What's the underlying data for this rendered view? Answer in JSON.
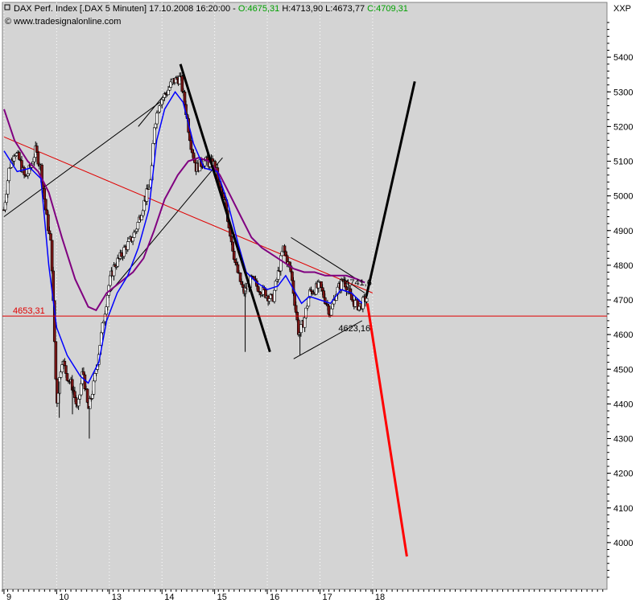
{
  "header": {
    "title": "DAX Perf. Index [.DAX  5 Minuten]",
    "datetime": "17.10.2008 16:20:00",
    "open": "O:4675,31",
    "high": "H:4713,90",
    "low": "L:4673,77",
    "close": "C:4709,31",
    "source": "© www.tradesignalonline.com",
    "symbol": "XXP"
  },
  "colors": {
    "plot_bg": "#d4d4d4",
    "candle_up": "#ffffff",
    "candle_down": "#7a1515",
    "ma_fast": "#0000ff",
    "ma_slow": "#800080",
    "support_line": "#e00000",
    "trend_thin": "#000000",
    "projection_up": "#000000",
    "projection_down": "#ff0000",
    "open_value": "#00a000",
    "close_value": "#00a000"
  },
  "chart_data": {
    "type": "candlestick",
    "y_range": [
      3900,
      5500
    ],
    "y_ticks": [
      4000,
      4100,
      4200,
      4300,
      4400,
      4500,
      4600,
      4700,
      4800,
      4900,
      5000,
      5100,
      5200,
      5300,
      5400
    ],
    "x_range": [
      8.97,
      20.45
    ],
    "x_ticks": [
      {
        "label": "9",
        "x": 9.0
      },
      {
        "label": "10",
        "x": 10.0
      },
      {
        "label": "13",
        "x": 11.0
      },
      {
        "label": "14",
        "x": 12.0
      },
      {
        "label": "15",
        "x": 13.0
      },
      {
        "label": "16",
        "x": 14.0
      },
      {
        "label": "17",
        "x": 15.0
      },
      {
        "label": "18",
        "x": 16.0
      }
    ],
    "price_path": [
      [
        9.0,
        4960
      ],
      [
        9.1,
        5080
      ],
      [
        9.2,
        5130
      ],
      [
        9.3,
        5100
      ],
      [
        9.4,
        5050
      ],
      [
        9.5,
        5080
      ],
      [
        9.6,
        5130
      ],
      [
        9.7,
        5080
      ],
      [
        9.8,
        4950
      ],
      [
        9.9,
        4850
      ],
      [
        10.0,
        4400
      ],
      [
        10.1,
        4530
      ],
      [
        10.2,
        4480
      ],
      [
        10.3,
        4450
      ],
      [
        10.4,
        4380
      ],
      [
        10.5,
        4500
      ],
      [
        10.6,
        4380
      ],
      [
        10.7,
        4450
      ],
      [
        10.85,
        4600
      ],
      [
        11.0,
        4750
      ],
      [
        11.1,
        4800
      ],
      [
        11.2,
        4820
      ],
      [
        11.3,
        4850
      ],
      [
        11.4,
        4870
      ],
      [
        11.5,
        4900
      ],
      [
        11.6,
        4950
      ],
      [
        11.7,
        5000
      ],
      [
        11.8,
        5050
      ],
      [
        11.85,
        5200
      ],
      [
        11.95,
        5270
      ],
      [
        12.1,
        5300
      ],
      [
        12.2,
        5330
      ],
      [
        12.35,
        5340
      ],
      [
        12.45,
        5250
      ],
      [
        12.55,
        5150
      ],
      [
        12.65,
        5080
      ],
      [
        12.8,
        5100
      ],
      [
        13.0,
        5090
      ],
      [
        13.1,
        5020
      ],
      [
        13.2,
        4980
      ],
      [
        13.3,
        4890
      ],
      [
        13.4,
        4800
      ],
      [
        13.55,
        4720
      ],
      [
        13.7,
        4760
      ],
      [
        13.8,
        4740
      ],
      [
        13.95,
        4720
      ],
      [
        14.1,
        4700
      ],
      [
        14.2,
        4770
      ],
      [
        14.3,
        4850
      ],
      [
        14.45,
        4780
      ],
      [
        14.6,
        4600
      ],
      [
        14.7,
        4640
      ],
      [
        14.8,
        4720
      ],
      [
        15.0,
        4740
      ],
      [
        15.1,
        4700
      ],
      [
        15.2,
        4660
      ],
      [
        15.3,
        4720
      ],
      [
        15.45,
        4760
      ],
      [
        15.6,
        4700
      ],
      [
        15.75,
        4680
      ],
      [
        15.9,
        4709
      ]
    ],
    "spikes": [
      {
        "x": 10.05,
        "low": 4360
      },
      {
        "x": 10.3,
        "low": 4370
      },
      {
        "x": 10.62,
        "low": 4300
      },
      {
        "x": 13.58,
        "low": 4550
      },
      {
        "x": 14.62,
        "low": 4540
      }
    ],
    "ma_fast": [
      [
        9.0,
        5130
      ],
      [
        9.25,
        5070
      ],
      [
        9.5,
        5080
      ],
      [
        9.7,
        5050
      ],
      [
        9.85,
        4800
      ],
      [
        10.0,
        4620
      ],
      [
        10.2,
        4540
      ],
      [
        10.45,
        4480
      ],
      [
        10.6,
        4460
      ],
      [
        10.8,
        4520
      ],
      [
        10.95,
        4640
      ],
      [
        11.15,
        4720
      ],
      [
        11.35,
        4770
      ],
      [
        11.55,
        4850
      ],
      [
        11.75,
        4960
      ],
      [
        11.9,
        5160
      ],
      [
        12.05,
        5250
      ],
      [
        12.25,
        5300
      ],
      [
        12.4,
        5270
      ],
      [
        12.6,
        5150
      ],
      [
        12.8,
        5080
      ],
      [
        13.05,
        5070
      ],
      [
        13.25,
        4980
      ],
      [
        13.45,
        4860
      ],
      [
        13.6,
        4780
      ],
      [
        13.8,
        4750
      ],
      [
        14.0,
        4730
      ],
      [
        14.2,
        4740
      ],
      [
        14.35,
        4770
      ],
      [
        14.5,
        4730
      ],
      [
        14.65,
        4690
      ],
      [
        14.8,
        4710
      ],
      [
        15.0,
        4700
      ],
      [
        15.2,
        4690
      ],
      [
        15.4,
        4730
      ],
      [
        15.6,
        4720
      ],
      [
        15.8,
        4690
      ]
    ],
    "ma_slow": [
      [
        9.0,
        5250
      ],
      [
        9.2,
        5160
      ],
      [
        9.45,
        5100
      ],
      [
        9.65,
        5070
      ],
      [
        9.85,
        5010
      ],
      [
        10.1,
        4880
      ],
      [
        10.35,
        4760
      ],
      [
        10.6,
        4680
      ],
      [
        10.75,
        4670
      ],
      [
        10.95,
        4720
      ],
      [
        11.2,
        4750
      ],
      [
        11.45,
        4780
      ],
      [
        11.65,
        4820
      ],
      [
        11.85,
        4900
      ],
      [
        12.05,
        4990
      ],
      [
        12.3,
        5060
      ],
      [
        12.5,
        5100
      ],
      [
        12.7,
        5110
      ],
      [
        12.9,
        5100
      ],
      [
        13.1,
        5060
      ],
      [
        13.3,
        5000
      ],
      [
        13.5,
        4940
      ],
      [
        13.7,
        4880
      ],
      [
        13.9,
        4850
      ],
      [
        14.1,
        4830
      ],
      [
        14.3,
        4810
      ],
      [
        14.5,
        4790
      ],
      [
        14.7,
        4780
      ],
      [
        14.9,
        4780
      ],
      [
        15.1,
        4770
      ],
      [
        15.3,
        4770
      ],
      [
        15.5,
        4770
      ],
      [
        15.7,
        4760
      ],
      [
        15.85,
        4750
      ]
    ],
    "trendlines": [
      {
        "kind": "thin",
        "points": [
          [
            9.0,
            4940
          ],
          [
            12.05,
            5280
          ]
        ]
      },
      {
        "kind": "thin",
        "points": [
          [
            11.55,
            5200
          ],
          [
            12.25,
            5330
          ]
        ]
      },
      {
        "kind": "thin",
        "points": [
          [
            11.0,
            4720
          ],
          [
            13.15,
            5110
          ]
        ]
      },
      {
        "kind": "thin",
        "points": [
          [
            14.45,
            4880
          ],
          [
            15.8,
            4750
          ]
        ]
      },
      {
        "kind": "thin",
        "points": [
          [
            14.5,
            4530
          ],
          [
            15.8,
            4640
          ]
        ]
      },
      {
        "kind": "thin",
        "points": [
          [
            15.45,
            4760
          ],
          [
            15.85,
            4720
          ]
        ]
      },
      {
        "kind": "support",
        "points": [
          [
            9.0,
            5170
          ],
          [
            16.0,
            4720
          ]
        ]
      },
      {
        "kind": "thick",
        "points": [
          [
            12.35,
            5380
          ],
          [
            14.05,
            4550
          ]
        ]
      },
      {
        "kind": "projection-up",
        "points": [
          [
            15.88,
            4710
          ],
          [
            16.8,
            5330
          ]
        ]
      },
      {
        "kind": "projection-down",
        "points": [
          [
            15.9,
            4690
          ],
          [
            16.65,
            3960
          ]
        ]
      }
    ],
    "hline": {
      "value": 4653.31,
      "label": "4653,31"
    },
    "annotations": [
      {
        "text": "4741,6",
        "x": 15.47,
        "y": 4742
      },
      {
        "text": "4623,16",
        "x": 15.35,
        "y": 4610
      }
    ]
  }
}
